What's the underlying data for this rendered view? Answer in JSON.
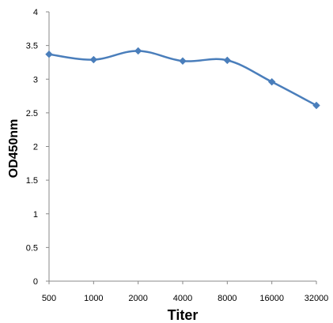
{
  "chart_data": {
    "type": "line",
    "title": "",
    "xlabel": "Titer",
    "ylabel": "OD450nm",
    "categories": [
      "500",
      "1000",
      "2000",
      "4000",
      "8000",
      "16000",
      "32000"
    ],
    "series": [
      {
        "values": [
          3.37,
          3.29,
          3.42,
          3.27,
          3.28,
          2.96,
          2.61
        ]
      }
    ],
    "ylim": [
      0,
      4
    ],
    "yticks": [
      "0",
      "0.5",
      "1",
      "1.5",
      "2",
      "2.5",
      "3",
      "3.5",
      "4"
    ],
    "grid": false,
    "legend": "none",
    "marker": "diamond",
    "line_color": "#4a7ebb"
  }
}
